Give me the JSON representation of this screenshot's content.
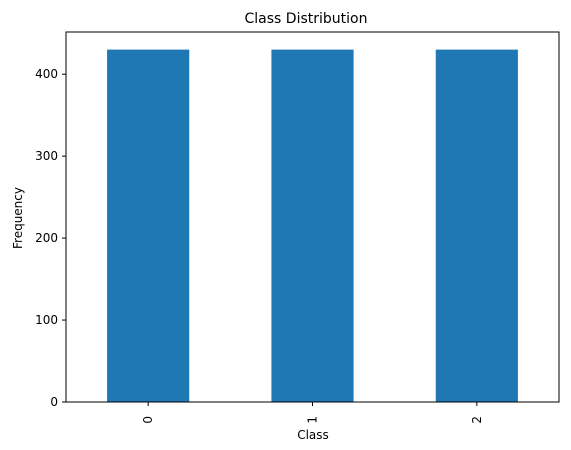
{
  "chart_data": {
    "type": "bar",
    "title": "Class Distribution",
    "xlabel": "Class",
    "ylabel": "Frequency",
    "categories": [
      "0",
      "1",
      "2"
    ],
    "values": [
      430,
      430,
      430
    ],
    "ylim": [
      0,
      451.5
    ],
    "yticks": [
      "0",
      "100",
      "200",
      "300",
      "400"
    ],
    "bar_color": "#1f77b4",
    "grid": false
  }
}
